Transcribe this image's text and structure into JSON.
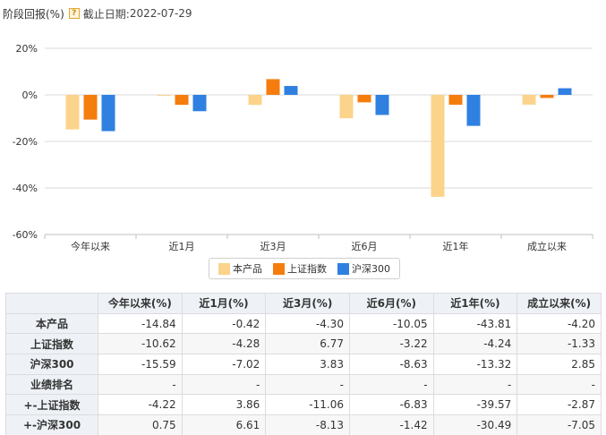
{
  "header": {
    "title": "阶段回报(%)",
    "help_icon": "?",
    "date_label": "截止日期:",
    "date_value": "2022-07-29"
  },
  "colors": {
    "本产品": "#fcd38b",
    "上证指数": "#f57d0d",
    "沪深300": "#2f80e0",
    "grid": "#d9d9d9",
    "axis": "#bfbfbf"
  },
  "chart_data": {
    "type": "bar",
    "categories": [
      "今年以来",
      "近1月",
      "近3月",
      "近6月",
      "近1年",
      "成立以来"
    ],
    "series": [
      {
        "name": "本产品",
        "values": [
          -14.84,
          -0.42,
          -4.3,
          -10.05,
          -43.81,
          -4.2
        ]
      },
      {
        "name": "上证指数",
        "values": [
          -10.62,
          -4.28,
          6.77,
          -3.22,
          -4.24,
          -1.33
        ]
      },
      {
        "name": "沪深300",
        "values": [
          -15.59,
          -7.02,
          3.83,
          -8.63,
          -13.32,
          2.85
        ]
      }
    ],
    "ylim": [
      -60,
      20
    ],
    "yticks": [
      20,
      0,
      -20,
      -40,
      -60
    ],
    "ytick_labels": [
      "20%",
      "0%",
      "-20%",
      "-40%",
      "-60%"
    ],
    "grid": true,
    "legend_position": "bottom"
  },
  "table": {
    "columns": [
      "",
      "今年以来(%)",
      "近1月(%)",
      "近3月(%)",
      "近6月(%)",
      "近1年(%)",
      "成立以来(%)"
    ],
    "rows": [
      {
        "label": "本产品",
        "cells": [
          "-14.84",
          "-0.42",
          "-4.30",
          "-10.05",
          "-43.81",
          "-4.20"
        ]
      },
      {
        "label": "上证指数",
        "cells": [
          "-10.62",
          "-4.28",
          "6.77",
          "-3.22",
          "-4.24",
          "-1.33"
        ]
      },
      {
        "label": "沪深300",
        "cells": [
          "-15.59",
          "-7.02",
          "3.83",
          "-8.63",
          "-13.32",
          "2.85"
        ]
      },
      {
        "label": "业绩排名",
        "cells": [
          "-",
          "-",
          "-",
          "-",
          "-",
          "-"
        ]
      },
      {
        "label": "+-上证指数",
        "cells": [
          "-4.22",
          "3.86",
          "-11.06",
          "-6.83",
          "-39.57",
          "-2.87"
        ]
      },
      {
        "label": "+-沪深300",
        "cells": [
          "0.75",
          "6.61",
          "-8.13",
          "-1.42",
          "-30.49",
          "-7.05"
        ]
      }
    ]
  }
}
